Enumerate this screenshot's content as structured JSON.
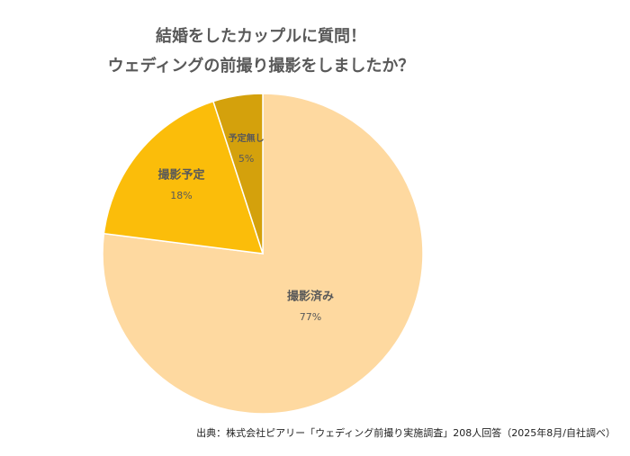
{
  "chart_data": {
    "type": "pie",
    "title": [
      "結婚をしたカップルに質問！",
      "ウェディングの前撮り撮影をしましたか？"
    ],
    "categories": [
      "撮影済み",
      "撮影予定",
      "予定無し"
    ],
    "values": [
      77,
      18,
      5
    ],
    "value_labels": [
      "77%",
      "18%",
      "5%"
    ],
    "colors": [
      "#fed9a0",
      "#fbbd0a",
      "#d4a10c"
    ],
    "source": "出典：株式会社ピアリー「ウェディング前撮り実施調査」208人回答（2025年8月/自社調べ）"
  }
}
